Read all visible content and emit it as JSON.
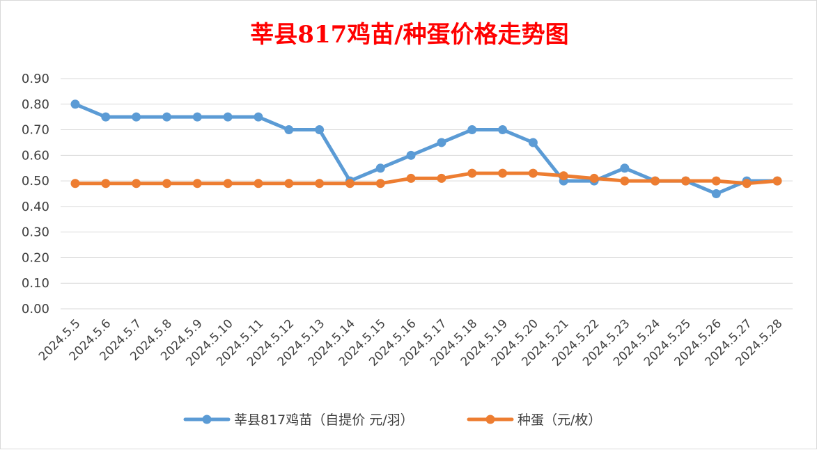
{
  "chart_data": {
    "type": "line",
    "title": "莘县817鸡苗/种蛋价格走势图",
    "xlabel": "",
    "ylabel": "",
    "ylim": [
      0,
      0.9
    ],
    "y_ticks": [
      "0.00",
      "0.10",
      "0.20",
      "0.30",
      "0.40",
      "0.50",
      "0.60",
      "0.70",
      "0.80",
      "0.90"
    ],
    "grid": true,
    "legend_position": "bottom",
    "categories": [
      "2024.5.5",
      "2024.5.6",
      "2024.5.7",
      "2024.5.8",
      "2024.5.9",
      "2024.5.10",
      "2024.5.11",
      "2024.5.12",
      "2024.5.13",
      "2024.5.14",
      "2024.5.15",
      "2024.5.16",
      "2024.5.17",
      "2024.5.18",
      "2024.5.19",
      "2024.5.20",
      "2024.5.21",
      "2024.5.22",
      "2024.5.23",
      "2024.5.24",
      "2024.5.25",
      "2024.5.26",
      "2024.5.27",
      "2024.5.28"
    ],
    "series": [
      {
        "name": "莘县817鸡苗（自提价 元/羽）",
        "color": "#5b9bd5",
        "values": [
          0.8,
          0.75,
          0.75,
          0.75,
          0.75,
          0.75,
          0.75,
          0.7,
          0.7,
          0.5,
          0.55,
          0.6,
          0.65,
          0.7,
          0.7,
          0.65,
          0.5,
          0.5,
          0.55,
          0.5,
          0.5,
          0.45,
          0.5,
          0.5
        ]
      },
      {
        "name": "种蛋（元/枚）",
        "color": "#ed7d31",
        "values": [
          0.49,
          0.49,
          0.49,
          0.49,
          0.49,
          0.49,
          0.49,
          0.49,
          0.49,
          0.49,
          0.49,
          0.51,
          0.51,
          0.53,
          0.53,
          0.53,
          0.52,
          0.51,
          0.5,
          0.5,
          0.5,
          0.5,
          0.49,
          0.5
        ]
      }
    ]
  }
}
